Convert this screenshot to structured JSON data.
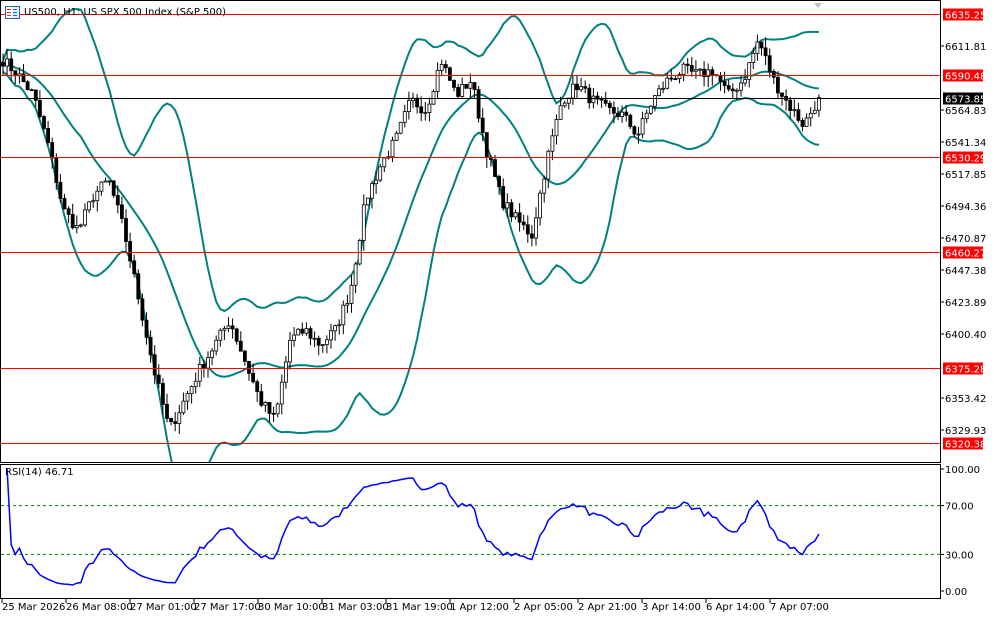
{
  "header": {
    "title": "US500, H1:  US SPX 500 Index (S&P 500)",
    "icon": "chart-window-icon"
  },
  "rsi": {
    "label": "RSI(14) 46.71"
  },
  "colors": {
    "level_line": "#ff0000",
    "current_price": "#000000",
    "bands": "#008080",
    "rsi_line": "#0000ff",
    "rsi_levels": "#008000"
  },
  "chart_data": [
    {
      "type": "candlestick",
      "title": "US500, H1:  US SPX 500 Index (S&P 500)",
      "ylim": [
        6306.5,
        6646
      ],
      "y_ticks": [
        "6611.81",
        "6564.83",
        "6541.34",
        "6517.85",
        "6494.36",
        "6470.87",
        "6447.38",
        "6423.89",
        "6400.40",
        "6353.42",
        "6329.93"
      ],
      "x_ticks": [
        "25 Mar 2026",
        "26 Mar 08:00",
        "27 Mar 01:00",
        "27 Mar 17:00",
        "30 Mar 10:00",
        "31 Mar 03:00",
        "31 Mar 19:00",
        "1 Apr 12:00",
        "2 Apr 05:00",
        "2 Apr 21:00",
        "3 Apr 14:00",
        "6 Apr 14:00",
        "7 Apr 07:00"
      ],
      "indicator": "Bollinger Bands",
      "level_lines": [
        "6635.25",
        "6590.48",
        "6530.29",
        "6460.27",
        "6375.28",
        "6320.38"
      ],
      "current_price": "6573.85",
      "approx_closes": [
        6601.5,
        6590.5,
        6575.8,
        6539.1,
        6491.4,
        6476.7,
        6502.4,
        6513.4,
        6476.7,
        6425.3,
        6373.9,
        6329.9,
        6351.9,
        6373.9,
        6392.3,
        6410.7,
        6381.3,
        6351.9,
        6337.2,
        6396.0,
        6403.3,
        6392.3,
        6403.3,
        6432.7,
        6498.7,
        6524.4,
        6542.8,
        6572.1,
        6564.8,
        6601.5,
        6575.8,
        6586.8,
        6535.4,
        6498.7,
        6484.0,
        6473.0,
        6528.1,
        6572.1,
        6583.1,
        6572.1,
        6564.8,
        6561.1,
        6546.4,
        6572.1,
        6586.8,
        6594.2,
        6590.5,
        6594.2,
        6575.8,
        6586.8,
        6616.2,
        6586.8,
        6568.5,
        6553.8,
        6573.85
      ]
    },
    {
      "type": "line",
      "title": "RSI(14) 46.71",
      "ylim": [
        0,
        100
      ],
      "y_ticks": [
        "100.00",
        "70.00",
        "30.00",
        "0.00"
      ],
      "levels": [
        70,
        30
      ],
      "last_value": 46.71
    }
  ]
}
